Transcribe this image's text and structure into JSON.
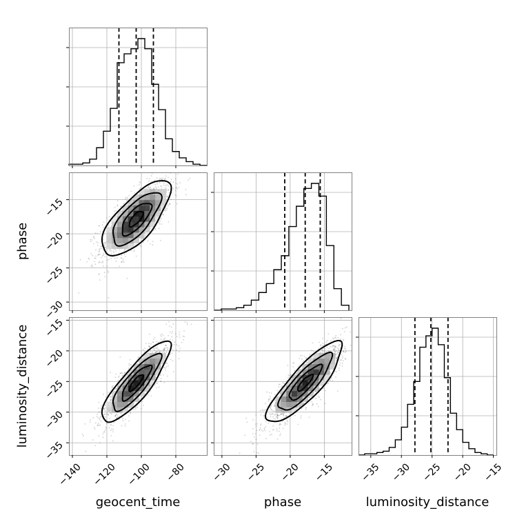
{
  "chart_data": {
    "type": "corner",
    "parameters": [
      "geocent_time",
      "phase",
      "luminosity_distance"
    ],
    "axis_ranges": {
      "geocent_time": [
        -142,
        -62
      ],
      "phase": [
        -31.2,
        -11.0
      ],
      "luminosity_distance": [
        -37.0,
        -14.5
      ]
    },
    "ticks": {
      "geocent_time": [
        -140,
        -120,
        -100,
        -80
      ],
      "phase": [
        -30,
        -25,
        -20,
        -15
      ],
      "luminosity_distance": [
        -35,
        -30,
        -25,
        -20,
        -15
      ]
    },
    "tick_labels": {
      "geocent_time": [
        "−140",
        "−120",
        "−100",
        "−80"
      ],
      "phase": [
        "−30",
        "−25",
        "−20",
        "−15"
      ],
      "luminosity_distance": [
        "−35",
        "−30",
        "−25",
        "−20",
        "−15"
      ]
    },
    "quantiles": {
      "geocent_time": [
        -113,
        -103,
        -93
      ],
      "phase": [
        -20.8,
        -17.8,
        -15.6
      ],
      "luminosity_distance": [
        -27.8,
        -25.2,
        -22.4
      ]
    },
    "histograms": {
      "geocent_time": {
        "bin_edges": [
          -142,
          -138,
          -134,
          -130,
          -126,
          -122,
          -118,
          -114,
          -110,
          -106,
          -102,
          -98,
          -94,
          -90,
          -86,
          -82,
          -78,
          -74,
          -70,
          -66,
          -62
        ],
        "counts": [
          0.01,
          0.01,
          0.02,
          0.05,
          0.14,
          0.27,
          0.45,
          0.81,
          0.88,
          0.92,
          1.0,
          0.92,
          0.64,
          0.44,
          0.21,
          0.11,
          0.06,
          0.03,
          0.01,
          0.0
        ]
      },
      "phase": {
        "bin_edges": [
          -31.2,
          -30.1,
          -29.0,
          -27.9,
          -26.8,
          -25.7,
          -24.6,
          -23.5,
          -22.4,
          -21.3,
          -20.2,
          -19.1,
          -18.0,
          -16.9,
          -15.8,
          -14.7,
          -13.6,
          -12.5,
          -11.4
        ],
        "counts": [
          0.0,
          0.01,
          0.01,
          0.02,
          0.04,
          0.08,
          0.14,
          0.21,
          0.32,
          0.43,
          0.66,
          0.82,
          0.96,
          1.0,
          0.9,
          0.51,
          0.17,
          0.04
        ]
      },
      "luminosity_distance": {
        "bin_edges": [
          -37.0,
          -36.0,
          -35.0,
          -34.0,
          -33.0,
          -32.0,
          -31.0,
          -30.0,
          -29.0,
          -28.0,
          -27.0,
          -26.0,
          -25.0,
          -24.0,
          -23.0,
          -22.0,
          -21.0,
          -20.0,
          -19.0,
          -18.0,
          -17.0,
          -16.0,
          -15.0
        ],
        "counts": [
          0.0,
          0.01,
          0.01,
          0.02,
          0.03,
          0.06,
          0.12,
          0.22,
          0.4,
          0.58,
          0.85,
          0.94,
          1.0,
          0.87,
          0.61,
          0.33,
          0.2,
          0.1,
          0.05,
          0.02,
          0.01,
          0.0
        ]
      }
    },
    "posterior_2d": {
      "phase_vs_geocent_time": {
        "mean": [
          -103,
          -17.8
        ],
        "sigma": [
          9,
          2.5
        ],
        "correlation": 0.72
      },
      "luminosity_distance_vs_geocent_time": {
        "mean": [
          -103,
          -25.2
        ],
        "sigma": [
          9,
          3.0
        ],
        "correlation": 0.85
      },
      "luminosity_distance_vs_phase": {
        "mean": [
          -17.8,
          -25.2
        ],
        "sigma": [
          2.5,
          3.0
        ],
        "correlation": 0.85
      }
    },
    "grid": true,
    "colors": {
      "line": "#000000",
      "grid": "#b0b0b0",
      "frame": "#808080",
      "density": "#000000",
      "scatter": "#555555"
    }
  }
}
